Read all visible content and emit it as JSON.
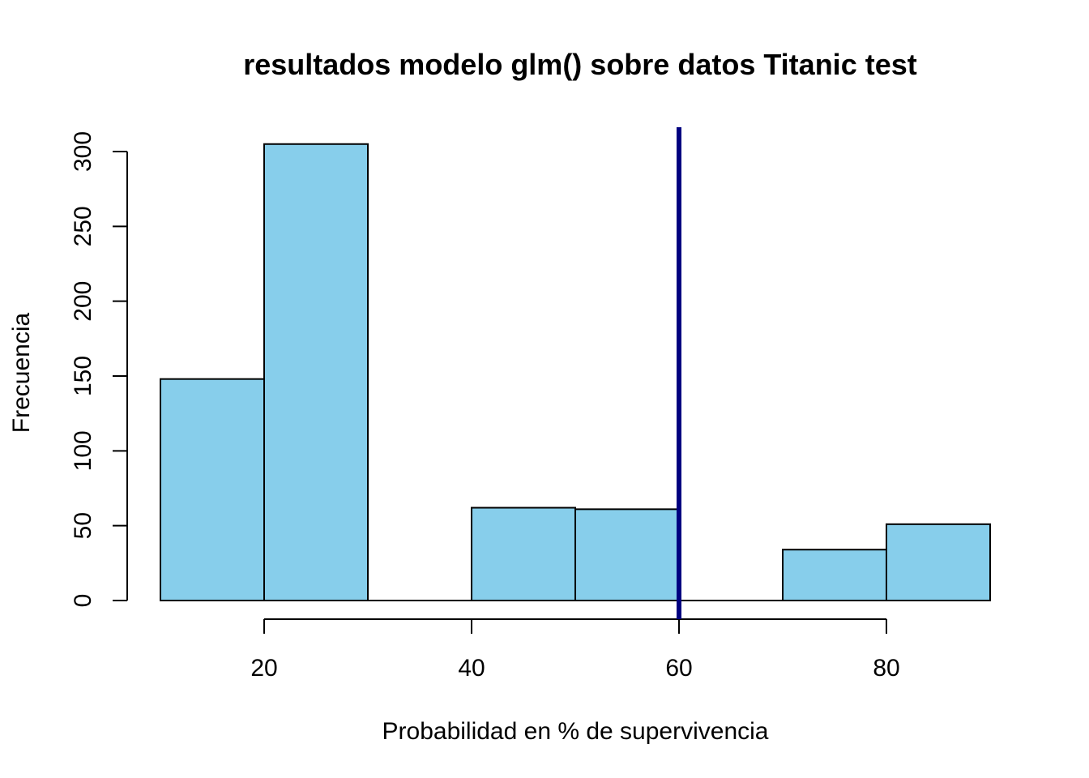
{
  "chart_data": {
    "type": "bar",
    "title": "resultados modelo glm() sobre datos Titanic test",
    "xlabel": "Probabilidad en % de supervivencia",
    "ylabel": "Frecuencia",
    "bins": [
      {
        "x0": 10,
        "x1": 20,
        "count": 148
      },
      {
        "x0": 20,
        "x1": 30,
        "count": 305
      },
      {
        "x0": 30,
        "x1": 40,
        "count": 0
      },
      {
        "x0": 40,
        "x1": 50,
        "count": 62
      },
      {
        "x0": 50,
        "x1": 60,
        "count": 61
      },
      {
        "x0": 60,
        "x1": 70,
        "count": 0
      },
      {
        "x0": 70,
        "x1": 80,
        "count": 34
      },
      {
        "x0": 80,
        "x1": 90,
        "count": 51
      }
    ],
    "xticks": [
      20,
      40,
      60,
      80
    ],
    "xtick_labels": [
      "20",
      "40",
      "60",
      "80"
    ],
    "yticks": [
      0,
      50,
      100,
      150,
      200,
      250,
      300
    ],
    "ytick_labels": [
      "0",
      "50",
      "100",
      "150",
      "200",
      "250",
      "300"
    ],
    "xlim": [
      10,
      90
    ],
    "ylim": [
      0,
      305
    ],
    "vline": {
      "x": 60,
      "color": "#000080"
    },
    "bar_color": "#87CEEB",
    "grid": false
  }
}
